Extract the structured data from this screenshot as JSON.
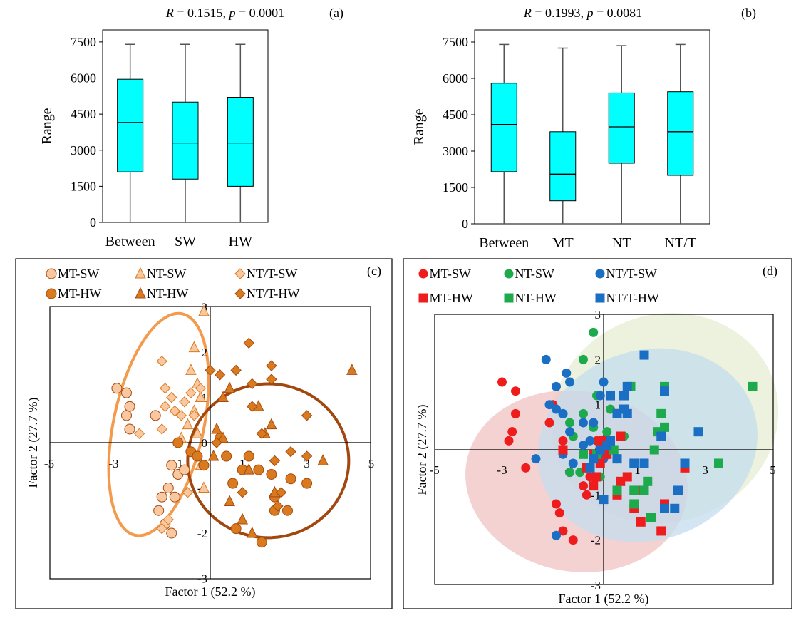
{
  "panels": {
    "a": {
      "label": "(a)",
      "stat_R": "R",
      "stat_R_val": " = 0.1515, ",
      "stat_p": "p",
      "stat_p_val": " = 0.0001"
    },
    "b": {
      "label": "(b)",
      "stat_R": "R",
      "stat_R_val": " = 0.1993, ",
      "stat_p": "p",
      "stat_p_val": " = 0.0081"
    },
    "c": {
      "label": "(c)"
    },
    "d": {
      "label": "(d)"
    }
  },
  "colors": {
    "box_fill": "#00ffff",
    "mt_light": "#f9c8a0",
    "orange": "#d97a1e",
    "dark_orange": "#a54a10",
    "ellipse_light": "#f49a4c",
    "ellipse_dark": "#a0480f",
    "red": "#ee1c1c",
    "green": "#1daa4c",
    "blue": "#1a6fc4",
    "ell_red": "#f2c3c3",
    "ell_green": "#e6edd2",
    "ell_blue": "#c4dced"
  },
  "chart_data": [
    {
      "id": "a",
      "type": "box",
      "ylabel": "Range",
      "ylim": [
        0,
        8000
      ],
      "yticks": [
        0,
        1500,
        3000,
        4500,
        6000,
        7500
      ],
      "categories": [
        "Between",
        "SW",
        "HW"
      ],
      "boxes": [
        {
          "min": 0,
          "q1": 2100,
          "median": 4150,
          "q3": 5950,
          "max": 7400
        },
        {
          "min": 0,
          "q1": 1800,
          "median": 3300,
          "q3": 5000,
          "max": 7400
        },
        {
          "min": 0,
          "q1": 1500,
          "median": 3300,
          "q3": 5200,
          "max": 7400
        }
      ]
    },
    {
      "id": "b",
      "type": "box",
      "ylabel": "Range",
      "ylim": [
        0,
        8000
      ],
      "yticks": [
        0,
        1500,
        3000,
        4500,
        6000,
        7500
      ],
      "categories": [
        "Between",
        "MT",
        "NT",
        "NT/T"
      ],
      "boxes": [
        {
          "min": 0,
          "q1": 2150,
          "median": 4100,
          "q3": 5800,
          "max": 7400
        },
        {
          "min": 0,
          "q1": 950,
          "median": 2050,
          "q3": 3800,
          "max": 7250
        },
        {
          "min": 0,
          "q1": 2500,
          "median": 4000,
          "q3": 5400,
          "max": 7350
        },
        {
          "min": 0,
          "q1": 2000,
          "median": 3800,
          "q3": 5450,
          "max": 7400
        }
      ]
    },
    {
      "id": "c",
      "type": "scatter",
      "xlabel": "Factor 1 (52.2 %)",
      "ylabel": "Factor 2 (27.7 %)",
      "xlim": [
        -5,
        5
      ],
      "ylim": [
        -3,
        3
      ],
      "xticks": [
        -5,
        -3,
        -1,
        1,
        3,
        5
      ],
      "yticks": [
        -3,
        -2,
        -1,
        0,
        1,
        2,
        3
      ],
      "legend": [
        "MT-SW",
        "NT-SW",
        "NT/T-SW",
        "MT-HW",
        "NT-HW",
        "NT/T-HW"
      ],
      "ellipses": [
        {
          "cx": -1.6,
          "cy": 0.4,
          "rx": 1.4,
          "ry": 2.5,
          "angle_deg": 12,
          "style": "sw"
        },
        {
          "cx": 1.8,
          "cy": -0.4,
          "rx": 2.5,
          "ry": 1.7,
          "angle_deg": 0,
          "style": "hw"
        }
      ],
      "series": [
        {
          "name": "MT-SW",
          "marker": "circle",
          "style": "mt_light",
          "points": [
            [
              -2.9,
              1.2
            ],
            [
              -2.6,
              0.6
            ],
            [
              -2.5,
              0.8
            ],
            [
              -2.6,
              1.1
            ],
            [
              -2.5,
              0.3
            ],
            [
              -1.7,
              0.6
            ],
            [
              -1.2,
              -0.5
            ],
            [
              -1.6,
              -1.5
            ],
            [
              -1.3,
              -1.0
            ],
            [
              -1.4,
              -1.8
            ],
            [
              -1.1,
              -1.2
            ],
            [
              -1.2,
              -2.0
            ],
            [
              -1.5,
              -1.2
            ],
            [
              -1.0,
              -0.7
            ],
            [
              -0.8,
              -0.6
            ]
          ]
        },
        {
          "name": "NT-SW",
          "marker": "triangle",
          "style": "light",
          "points": [
            [
              -0.2,
              2.9
            ],
            [
              -0.5,
              2.1
            ],
            [
              -0.6,
              1.6
            ],
            [
              -0.4,
              1.3
            ],
            [
              -0.3,
              1.0
            ],
            [
              -0.5,
              0.7
            ],
            [
              -0.7,
              0.4
            ],
            [
              -0.9,
              0.1
            ],
            [
              -0.3,
              -0.5
            ],
            [
              -0.2,
              -1.0
            ],
            [
              -0.4,
              0.2
            ]
          ]
        },
        {
          "name": "NT/T-SW",
          "marker": "diamond",
          "style": "light",
          "points": [
            [
              -2.2,
              0.2
            ],
            [
              -1.5,
              1.8
            ],
            [
              -1.4,
              1.2
            ],
            [
              -1.2,
              1.0
            ],
            [
              -1.4,
              0.8
            ],
            [
              -1.1,
              0.7
            ],
            [
              -1.5,
              0.3
            ],
            [
              -0.6,
              1.1
            ],
            [
              -0.8,
              0.9
            ],
            [
              -0.5,
              0.6
            ],
            [
              -0.3,
              1.2
            ],
            [
              -0.9,
              0.6
            ],
            [
              -1.3,
              -1.7
            ],
            [
              -1.5,
              -1.9
            ],
            [
              -0.7,
              -1.1
            ]
          ]
        },
        {
          "name": "MT-HW",
          "marker": "circle",
          "style": "orange",
          "points": [
            [
              -1.0,
              0.0
            ],
            [
              -0.6,
              -0.2
            ],
            [
              -0.4,
              -0.3
            ],
            [
              -0.2,
              -0.5
            ],
            [
              0.3,
              0.1
            ],
            [
              0.5,
              -0.3
            ],
            [
              1.2,
              -0.3
            ],
            [
              1.5,
              -0.6
            ],
            [
              2.0,
              -1.5
            ],
            [
              2.0,
              -1.2
            ],
            [
              2.4,
              -1.5
            ],
            [
              2.5,
              -0.8
            ],
            [
              1.9,
              -0.7
            ],
            [
              3.0,
              -0.9
            ],
            [
              0.8,
              -1.9
            ],
            [
              1.6,
              -2.2
            ],
            [
              1.0,
              -0.6
            ],
            [
              0.7,
              -0.9
            ]
          ]
        },
        {
          "name": "NT-HW",
          "marker": "triangle",
          "style": "orange",
          "points": [
            [
              4.4,
              1.6
            ],
            [
              0.2,
              0.3
            ],
            [
              0.4,
              1.0
            ],
            [
              0.6,
              1.2
            ],
            [
              1.5,
              0.8
            ],
            [
              1.9,
              0.4
            ],
            [
              1.7,
              0.2
            ],
            [
              1.2,
              -0.6
            ],
            [
              2.0,
              -1.1
            ],
            [
              3.5,
              -0.4
            ],
            [
              1.3,
              -2.0
            ],
            [
              0.6,
              -1.3
            ],
            [
              1.0,
              -1.7
            ],
            [
              0.4,
              0.1
            ],
            [
              0.1,
              -0.3
            ]
          ]
        },
        {
          "name": "NT/T-HW",
          "marker": "diamond",
          "style": "orange",
          "points": [
            [
              1.2,
              2.2
            ],
            [
              0.8,
              1.6
            ],
            [
              1.9,
              1.7
            ],
            [
              1.9,
              1.4
            ],
            [
              1.3,
              1.3
            ],
            [
              1.3,
              0.8
            ],
            [
              1.6,
              0.2
            ],
            [
              3.0,
              0.6
            ],
            [
              2.5,
              -0.2
            ],
            [
              3.0,
              -0.3
            ],
            [
              2.0,
              -0.4
            ],
            [
              2.1,
              -1.4
            ],
            [
              2.2,
              -1.1
            ],
            [
              1.0,
              -1.1
            ],
            [
              0.0,
              1.6
            ],
            [
              0.3,
              1.5
            ],
            [
              0.2,
              0.0
            ]
          ]
        }
      ]
    },
    {
      "id": "d",
      "type": "scatter",
      "xlabel": "Factor 1 (52.2 %)",
      "ylabel": "Factor 2 (27.7 %)",
      "xlim": [
        -5,
        5
      ],
      "ylim": [
        -3,
        3
      ],
      "xticks": [
        -5,
        -3,
        -1,
        1,
        3,
        5
      ],
      "yticks": [
        -3,
        -2,
        -1,
        0,
        1,
        2,
        3
      ],
      "legend": [
        "MT-SW",
        "NT-SW",
        "NT/T-SW",
        "MT-HW",
        "NT-HW",
        "NT/T-HW"
      ],
      "ellipses": [
        {
          "cx": 1.8,
          "cy": 0.7,
          "rx": 3.4,
          "ry": 2.3,
          "angle_deg": -20,
          "style": "ell_green"
        },
        {
          "cx": -0.8,
          "cy": -0.7,
          "rx": 3.3,
          "ry": 2.0,
          "angle_deg": 10,
          "style": "ell_red"
        },
        {
          "cx": 1.3,
          "cy": 0.1,
          "rx": 3.3,
          "ry": 2.1,
          "angle_deg": -20,
          "style": "ell_blue"
        }
      ],
      "series": [
        {
          "name": "MT-SW",
          "marker": "circle",
          "style": "red",
          "points": [
            [
              -3.0,
              1.5
            ],
            [
              -2.6,
              1.3
            ],
            [
              -2.6,
              0.8
            ],
            [
              -2.7,
              0.4
            ],
            [
              -2.8,
              0.2
            ],
            [
              -2.3,
              -0.4
            ],
            [
              -1.6,
              0.6
            ],
            [
              -1.5,
              1.0
            ],
            [
              -1.2,
              0.2
            ],
            [
              -1.0,
              -0.5
            ],
            [
              -1.4,
              -1.2
            ],
            [
              -1.2,
              -1.8
            ],
            [
              -1.3,
              -1.4
            ],
            [
              -0.9,
              -2.0
            ],
            [
              -0.5,
              -1.0
            ],
            [
              -0.6,
              -0.8
            ],
            [
              -0.2,
              0.2
            ],
            [
              -0.4,
              -0.6
            ]
          ]
        },
        {
          "name": "NT-SW",
          "marker": "circle",
          "style": "green",
          "points": [
            [
              -0.3,
              2.6
            ],
            [
              -0.6,
              2.0
            ],
            [
              -0.2,
              1.2
            ],
            [
              0.2,
              0.9
            ],
            [
              -0.6,
              0.8
            ],
            [
              -1.2,
              0.8
            ],
            [
              -1.0,
              0.6
            ],
            [
              -0.9,
              0.3
            ],
            [
              -0.3,
              0.5
            ],
            [
              0.1,
              0.4
            ],
            [
              0.4,
              -0.2
            ],
            [
              0.6,
              0.3
            ],
            [
              -0.5,
              -0.4
            ],
            [
              -0.1,
              -0.6
            ],
            [
              -0.7,
              -0.5
            ],
            [
              -1.0,
              -0.5
            ]
          ]
        },
        {
          "name": "NT/T-SW",
          "marker": "circle",
          "style": "blue",
          "points": [
            [
              -1.7,
              2.0
            ],
            [
              -1.1,
              1.7
            ],
            [
              -1.0,
              1.5
            ],
            [
              -1.4,
              1.4
            ],
            [
              0.0,
              1.5
            ],
            [
              -1.4,
              0.9
            ],
            [
              -1.6,
              1.0
            ],
            [
              -1.2,
              0.8
            ],
            [
              -1.0,
              0.4
            ],
            [
              -0.6,
              0.6
            ],
            [
              -0.3,
              0.6
            ],
            [
              -0.1,
              1.2
            ],
            [
              -0.4,
              0.2
            ],
            [
              -2.0,
              -0.2
            ],
            [
              -0.9,
              -0.3
            ],
            [
              -1.2,
              -0.1
            ],
            [
              0.0,
              -0.2
            ],
            [
              -0.6,
              0.1
            ],
            [
              -1.4,
              -1.9
            ]
          ]
        },
        {
          "name": "MT-HW",
          "marker": "square",
          "style": "red",
          "points": [
            [
              -0.5,
              -0.4
            ],
            [
              -0.2,
              -0.6
            ],
            [
              0.0,
              0.2
            ],
            [
              0.4,
              0.8
            ],
            [
              0.2,
              0.1
            ],
            [
              0.1,
              -0.1
            ],
            [
              -0.1,
              -0.3
            ],
            [
              -0.3,
              -0.8
            ],
            [
              0.5,
              -0.7
            ],
            [
              0.4,
              -1.0
            ],
            [
              0.9,
              -1.3
            ],
            [
              1.1,
              -1.6
            ],
            [
              1.0,
              -0.9
            ],
            [
              1.8,
              -1.2
            ],
            [
              1.7,
              -1.8
            ],
            [
              2.4,
              -0.4
            ],
            [
              0.7,
              -0.6
            ],
            [
              -1.2,
              0.0
            ],
            [
              -0.3,
              -0.1
            ],
            [
              0.5,
              0.3
            ]
          ]
        },
        {
          "name": "NT-HW",
          "marker": "square",
          "style": "green",
          "points": [
            [
              4.4,
              1.4
            ],
            [
              1.8,
              1.4
            ],
            [
              1.7,
              0.8
            ],
            [
              1.6,
              0.4
            ],
            [
              1.8,
              0.5
            ],
            [
              1.5,
              0.0
            ],
            [
              0.8,
              1.4
            ],
            [
              0.4,
              -0.9
            ],
            [
              0.9,
              -0.9
            ],
            [
              1.2,
              -0.9
            ],
            [
              1.3,
              -0.7
            ],
            [
              1.4,
              -1.5
            ],
            [
              0.9,
              -1.2
            ],
            [
              3.4,
              -0.3
            ],
            [
              -0.2,
              -0.1
            ],
            [
              0.3,
              0.0
            ],
            [
              -0.6,
              -0.1
            ]
          ]
        },
        {
          "name": "NT/T-HW",
          "marker": "square",
          "style": "blue",
          "points": [
            [
              1.2,
              2.1
            ],
            [
              0.6,
              1.2
            ],
            [
              0.7,
              1.4
            ],
            [
              0.2,
              1.2
            ],
            [
              0.6,
              0.9
            ],
            [
              0.7,
              0.8
            ],
            [
              0.4,
              0.8
            ],
            [
              1.8,
              1.3
            ],
            [
              1.7,
              0.3
            ],
            [
              2.8,
              0.4
            ],
            [
              2.4,
              -0.3
            ],
            [
              2.2,
              -0.9
            ],
            [
              2.1,
              -1.3
            ],
            [
              1.8,
              -1.3
            ],
            [
              0.9,
              -0.3
            ],
            [
              1.2,
              -0.3
            ],
            [
              0.4,
              -0.2
            ],
            [
              0.0,
              -1.1
            ],
            [
              -0.3,
              -0.2
            ],
            [
              0.1,
              0.1
            ],
            [
              -0.1,
              0.0
            ],
            [
              -0.4,
              -0.4
            ],
            [
              0.2,
              0.2
            ],
            [
              0.6,
              0.9
            ]
          ]
        }
      ]
    }
  ]
}
